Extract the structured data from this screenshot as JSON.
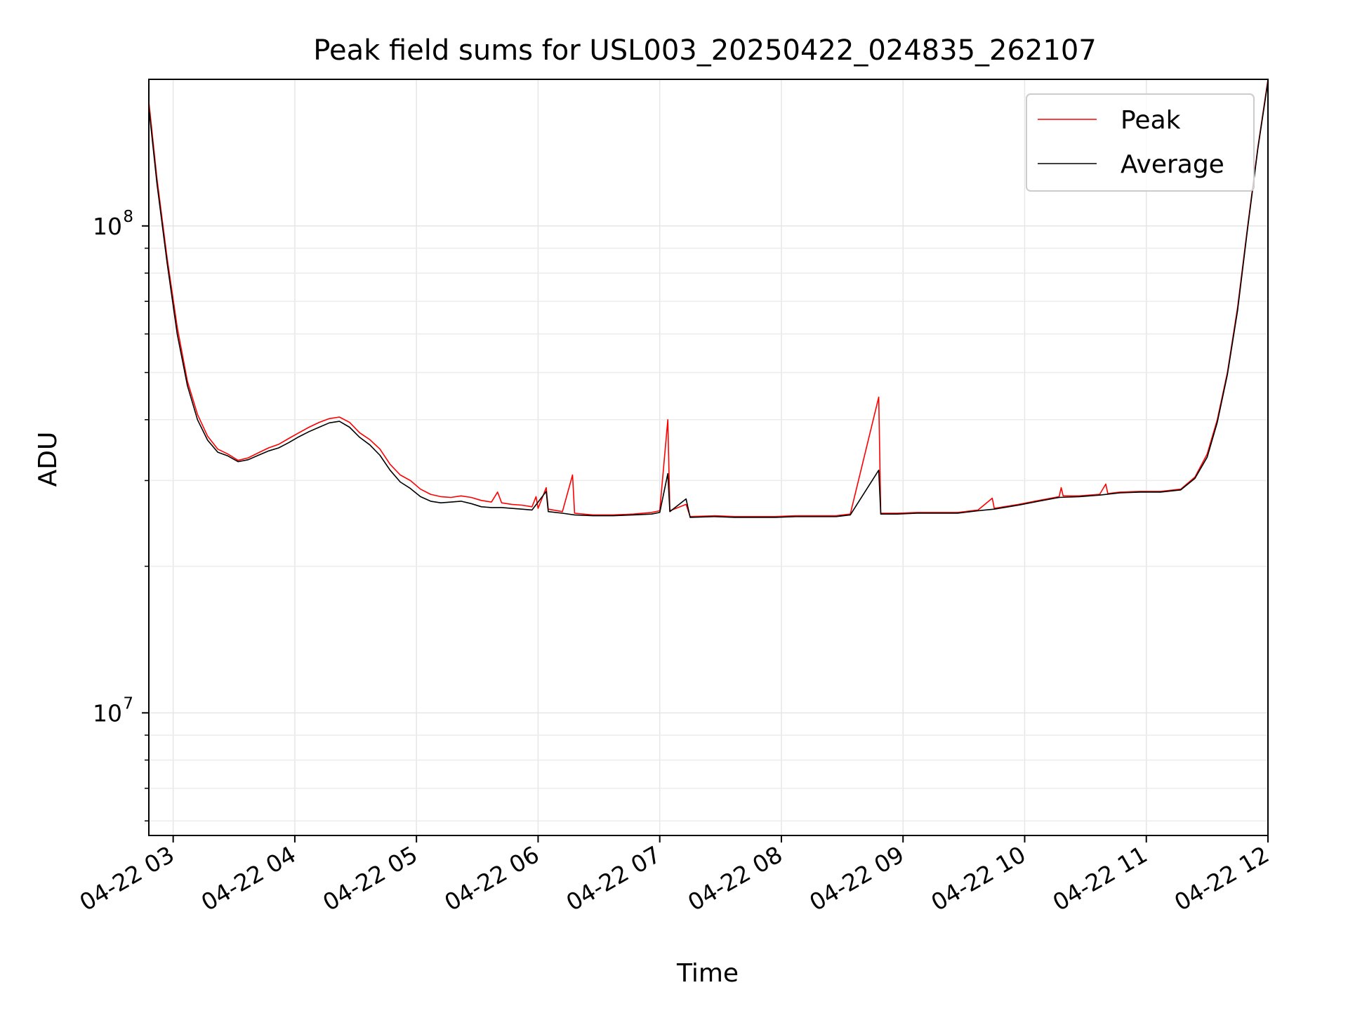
{
  "chart_data": {
    "type": "line",
    "title": "Peak field sums for USL003_20250422_024835_262107",
    "xlabel": "Time",
    "ylabel": "ADU",
    "yscale": "log",
    "grid": true,
    "legend_position": "top-right",
    "xlim": [
      "2025-04-22T02:48",
      "2025-04-22T12:00"
    ],
    "ylim": [
      5600000,
      200000000
    ],
    "x_tick_labels": [
      "04-22 03",
      "04-22 04",
      "04-22 05",
      "04-22 06",
      "04-22 07",
      "04-22 08",
      "04-22 09",
      "04-22 10",
      "04-22 11",
      "04-22 12"
    ],
    "y_tick_labels": [
      {
        "base": "10",
        "exp": "7",
        "value": 10000000
      },
      {
        "base": "10",
        "exp": "8",
        "value": 100000000
      }
    ],
    "series": [
      {
        "name": "Peak",
        "color": "#ff0000",
        "points": [
          [
            "2025-04-22T02:48",
            180000000
          ],
          [
            "2025-04-22T02:52",
            125000000
          ],
          [
            "2025-04-22T02:57",
            86000000
          ],
          [
            "2025-04-22T03:02",
            62000000
          ],
          [
            "2025-04-22T03:07",
            48000000
          ],
          [
            "2025-04-22T03:12",
            41000000
          ],
          [
            "2025-04-22T03:17",
            37000000
          ],
          [
            "2025-04-22T03:22",
            34800000
          ],
          [
            "2025-04-22T03:27",
            34000000
          ],
          [
            "2025-04-22T03:32",
            33000000
          ],
          [
            "2025-04-22T03:37",
            33400000
          ],
          [
            "2025-04-22T03:42",
            34200000
          ],
          [
            "2025-04-22T03:47",
            35000000
          ],
          [
            "2025-04-22T03:52",
            35600000
          ],
          [
            "2025-04-22T03:57",
            36600000
          ],
          [
            "2025-04-22T04:02",
            37600000
          ],
          [
            "2025-04-22T04:07",
            38600000
          ],
          [
            "2025-04-22T04:12",
            39500000
          ],
          [
            "2025-04-22T04:17",
            40200000
          ],
          [
            "2025-04-22T04:22",
            40500000
          ],
          [
            "2025-04-22T04:27",
            39500000
          ],
          [
            "2025-04-22T04:32",
            37600000
          ],
          [
            "2025-04-22T04:37",
            36400000
          ],
          [
            "2025-04-22T04:42",
            34800000
          ],
          [
            "2025-04-22T04:47",
            32400000
          ],
          [
            "2025-04-22T04:52",
            30800000
          ],
          [
            "2025-04-22T04:57",
            30000000
          ],
          [
            "2025-04-22T05:02",
            28800000
          ],
          [
            "2025-04-22T05:07",
            28100000
          ],
          [
            "2025-04-22T05:12",
            27800000
          ],
          [
            "2025-04-22T05:17",
            27700000
          ],
          [
            "2025-04-22T05:22",
            27900000
          ],
          [
            "2025-04-22T05:27",
            27700000
          ],
          [
            "2025-04-22T05:32",
            27300000
          ],
          [
            "2025-04-22T05:37",
            27100000
          ],
          [
            "2025-04-22T05:40",
            28400000
          ],
          [
            "2025-04-22T05:42",
            27000000
          ],
          [
            "2025-04-22T05:47",
            26800000
          ],
          [
            "2025-04-22T05:52",
            26700000
          ],
          [
            "2025-04-22T05:57",
            26500000
          ],
          [
            "2025-04-22T05:59",
            27800000
          ],
          [
            "2025-04-22T06:00",
            26300000
          ],
          [
            "2025-04-22T06:04",
            29000000
          ],
          [
            "2025-04-22T06:05",
            26200000
          ],
          [
            "2025-04-22T06:12",
            25900000
          ],
          [
            "2025-04-22T06:17",
            30800000
          ],
          [
            "2025-04-22T06:18",
            25700000
          ],
          [
            "2025-04-22T06:27",
            25500000
          ],
          [
            "2025-04-22T06:37",
            25500000
          ],
          [
            "2025-04-22T06:47",
            25600000
          ],
          [
            "2025-04-22T06:56",
            25800000
          ],
          [
            "2025-04-22T07:00",
            26000000
          ],
          [
            "2025-04-22T07:04",
            40000000
          ],
          [
            "2025-04-22T07:05",
            26000000
          ],
          [
            "2025-04-22T07:13",
            26800000
          ],
          [
            "2025-04-22T07:15",
            25300000
          ],
          [
            "2025-04-22T07:27",
            25400000
          ],
          [
            "2025-04-22T07:37",
            25300000
          ],
          [
            "2025-04-22T07:47",
            25300000
          ],
          [
            "2025-04-22T07:57",
            25300000
          ],
          [
            "2025-04-22T08:07",
            25400000
          ],
          [
            "2025-04-22T08:17",
            25400000
          ],
          [
            "2025-04-22T08:27",
            25400000
          ],
          [
            "2025-04-22T08:34",
            25600000
          ],
          [
            "2025-04-22T08:48",
            44500000
          ],
          [
            "2025-04-22T08:49",
            25700000
          ],
          [
            "2025-04-22T08:57",
            25700000
          ],
          [
            "2025-04-22T09:07",
            25800000
          ],
          [
            "2025-04-22T09:17",
            25800000
          ],
          [
            "2025-04-22T09:27",
            25800000
          ],
          [
            "2025-04-22T09:37",
            26100000
          ],
          [
            "2025-04-22T09:44",
            27600000
          ],
          [
            "2025-04-22T09:45",
            26300000
          ],
          [
            "2025-04-22T09:57",
            26800000
          ],
          [
            "2025-04-22T10:07",
            27300000
          ],
          [
            "2025-04-22T10:17",
            27800000
          ],
          [
            "2025-04-22T10:18",
            29000000
          ],
          [
            "2025-04-22T10:19",
            27900000
          ],
          [
            "2025-04-22T10:27",
            27900000
          ],
          [
            "2025-04-22T10:37",
            28100000
          ],
          [
            "2025-04-22T10:40",
            29500000
          ],
          [
            "2025-04-22T10:41",
            28200000
          ],
          [
            "2025-04-22T10:47",
            28400000
          ],
          [
            "2025-04-22T10:57",
            28500000
          ],
          [
            "2025-04-22T11:07",
            28500000
          ],
          [
            "2025-04-22T11:17",
            28800000
          ],
          [
            "2025-04-22T11:24",
            30500000
          ],
          [
            "2025-04-22T11:30",
            34000000
          ],
          [
            "2025-04-22T11:35",
            40000000
          ],
          [
            "2025-04-22T11:40",
            50000000
          ],
          [
            "2025-04-22T11:45",
            68000000
          ],
          [
            "2025-04-22T11:50",
            100000000
          ],
          [
            "2025-04-22T11:55",
            145000000
          ],
          [
            "2025-04-22T12:00",
            200000000
          ]
        ]
      },
      {
        "name": "Average",
        "color": "#000000",
        "points": [
          [
            "2025-04-22T02:48",
            175000000
          ],
          [
            "2025-04-22T02:52",
            122000000
          ],
          [
            "2025-04-22T02:57",
            84000000
          ],
          [
            "2025-04-22T03:02",
            60000000
          ],
          [
            "2025-04-22T03:07",
            47000000
          ],
          [
            "2025-04-22T03:12",
            40000000
          ],
          [
            "2025-04-22T03:17",
            36300000
          ],
          [
            "2025-04-22T03:22",
            34300000
          ],
          [
            "2025-04-22T03:27",
            33700000
          ],
          [
            "2025-04-22T03:32",
            32800000
          ],
          [
            "2025-04-22T03:37",
            33100000
          ],
          [
            "2025-04-22T03:42",
            33800000
          ],
          [
            "2025-04-22T03:47",
            34500000
          ],
          [
            "2025-04-22T03:52",
            35000000
          ],
          [
            "2025-04-22T03:57",
            35900000
          ],
          [
            "2025-04-22T04:02",
            36900000
          ],
          [
            "2025-04-22T04:07",
            37800000
          ],
          [
            "2025-04-22T04:12",
            38600000
          ],
          [
            "2025-04-22T04:17",
            39400000
          ],
          [
            "2025-04-22T04:22",
            39700000
          ],
          [
            "2025-04-22T04:27",
            38600000
          ],
          [
            "2025-04-22T04:32",
            36800000
          ],
          [
            "2025-04-22T04:37",
            35500000
          ],
          [
            "2025-04-22T04:42",
            33800000
          ],
          [
            "2025-04-22T04:47",
            31500000
          ],
          [
            "2025-04-22T04:52",
            29800000
          ],
          [
            "2025-04-22T04:57",
            28900000
          ],
          [
            "2025-04-22T05:02",
            27800000
          ],
          [
            "2025-04-22T05:07",
            27200000
          ],
          [
            "2025-04-22T05:12",
            27000000
          ],
          [
            "2025-04-22T05:17",
            27100000
          ],
          [
            "2025-04-22T05:22",
            27200000
          ],
          [
            "2025-04-22T05:27",
            26900000
          ],
          [
            "2025-04-22T05:32",
            26500000
          ],
          [
            "2025-04-22T05:37",
            26400000
          ],
          [
            "2025-04-22T05:42",
            26400000
          ],
          [
            "2025-04-22T05:47",
            26300000
          ],
          [
            "2025-04-22T05:52",
            26200000
          ],
          [
            "2025-04-22T05:57",
            26100000
          ],
          [
            "2025-04-22T06:04",
            28500000
          ],
          [
            "2025-04-22T06:05",
            25900000
          ],
          [
            "2025-04-22T06:12",
            25700000
          ],
          [
            "2025-04-22T06:18",
            25500000
          ],
          [
            "2025-04-22T06:27",
            25400000
          ],
          [
            "2025-04-22T06:37",
            25400000
          ],
          [
            "2025-04-22T06:47",
            25500000
          ],
          [
            "2025-04-22T06:56",
            25600000
          ],
          [
            "2025-04-22T07:00",
            25800000
          ],
          [
            "2025-04-22T07:04",
            31000000
          ],
          [
            "2025-04-22T07:05",
            25900000
          ],
          [
            "2025-04-22T07:13",
            27500000
          ],
          [
            "2025-04-22T07:15",
            25200000
          ],
          [
            "2025-04-22T07:27",
            25300000
          ],
          [
            "2025-04-22T07:37",
            25200000
          ],
          [
            "2025-04-22T07:47",
            25200000
          ],
          [
            "2025-04-22T07:57",
            25200000
          ],
          [
            "2025-04-22T08:07",
            25300000
          ],
          [
            "2025-04-22T08:17",
            25300000
          ],
          [
            "2025-04-22T08:27",
            25300000
          ],
          [
            "2025-04-22T08:34",
            25500000
          ],
          [
            "2025-04-22T08:48",
            31500000
          ],
          [
            "2025-04-22T08:49",
            25600000
          ],
          [
            "2025-04-22T08:57",
            25600000
          ],
          [
            "2025-04-22T09:07",
            25700000
          ],
          [
            "2025-04-22T09:17",
            25700000
          ],
          [
            "2025-04-22T09:27",
            25700000
          ],
          [
            "2025-04-22T09:37",
            26000000
          ],
          [
            "2025-04-22T09:45",
            26200000
          ],
          [
            "2025-04-22T09:57",
            26700000
          ],
          [
            "2025-04-22T10:07",
            27200000
          ],
          [
            "2025-04-22T10:17",
            27700000
          ],
          [
            "2025-04-22T10:27",
            27800000
          ],
          [
            "2025-04-22T10:37",
            28000000
          ],
          [
            "2025-04-22T10:47",
            28300000
          ],
          [
            "2025-04-22T10:57",
            28400000
          ],
          [
            "2025-04-22T11:07",
            28400000
          ],
          [
            "2025-04-22T11:17",
            28700000
          ],
          [
            "2025-04-22T11:24",
            30300000
          ],
          [
            "2025-04-22T11:30",
            33500000
          ],
          [
            "2025-04-22T11:35",
            39500000
          ],
          [
            "2025-04-22T11:40",
            49500000
          ],
          [
            "2025-04-22T11:45",
            67000000
          ],
          [
            "2025-04-22T11:50",
            99000000
          ],
          [
            "2025-04-22T11:55",
            144000000
          ],
          [
            "2025-04-22T12:00",
            198000000
          ]
        ]
      }
    ]
  }
}
